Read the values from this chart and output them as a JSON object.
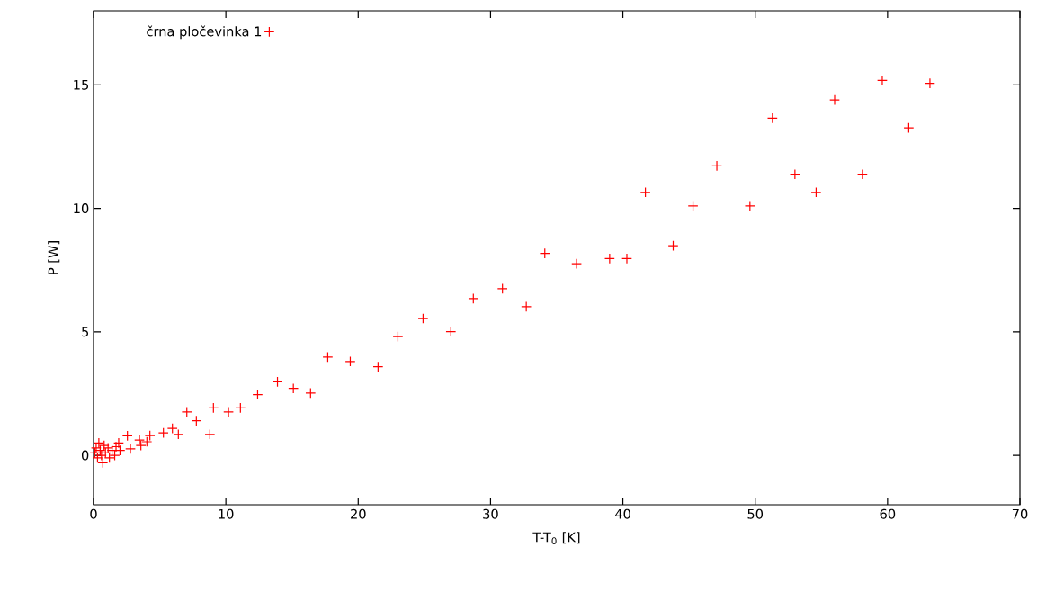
{
  "chart_data": {
    "type": "scatter",
    "xlabel": "T-T$_{0}$ [K]",
    "ylabel": "P [W]",
    "xlim": [
      0,
      70
    ],
    "ylim": [
      -2,
      18
    ],
    "xticks": [
      0,
      10,
      20,
      30,
      40,
      50,
      60,
      70
    ],
    "yticks": [
      0,
      5,
      10,
      15
    ],
    "grid": false,
    "legend": "top left",
    "marker": "cross",
    "series": [
      {
        "name": "črna pločevinka 1",
        "color": "#ff0000",
        "x": [
          0.1,
          0.2,
          0.3,
          0.4,
          0.5,
          0.6,
          0.7,
          0.8,
          0.9,
          1.1,
          1.2,
          1.4,
          1.6,
          1.7,
          1.9,
          2.0,
          2.56,
          2.79,
          3.47,
          3.58,
          4.03,
          4.26,
          5.28,
          5.96,
          6.41,
          7.05,
          7.77,
          8.79,
          9.06,
          10.2,
          11.1,
          12.4,
          13.9,
          15.1,
          16.4,
          17.7,
          19.4,
          21.5,
          23.0,
          24.9,
          27.0,
          28.7,
          30.9,
          32.7,
          34.1,
          36.5,
          39.0,
          40.3,
          41.7,
          43.8,
          45.3,
          47.1,
          49.6,
          51.3,
          53.0,
          54.6,
          56.0,
          58.1,
          59.6,
          61.6,
          63.2
        ],
        "values": [
          0.1,
          0.3,
          -0.1,
          0.5,
          0.2,
          0.0,
          -0.3,
          0.4,
          0.1,
          0.3,
          -0.1,
          0.2,
          0.0,
          0.35,
          0.5,
          0.2,
          0.79,
          0.26,
          0.62,
          0.4,
          0.55,
          0.8,
          0.91,
          1.09,
          0.85,
          1.76,
          1.4,
          0.85,
          1.92,
          1.76,
          1.92,
          2.46,
          2.98,
          2.71,
          2.52,
          3.98,
          3.8,
          3.59,
          4.81,
          5.54,
          5.01,
          6.35,
          6.75,
          6.02,
          8.18,
          7.76,
          7.97,
          7.97,
          10.65,
          8.49,
          10.1,
          11.72,
          10.1,
          13.65,
          11.38,
          10.65,
          14.39,
          11.38,
          15.18,
          13.26,
          15.06
        ]
      }
    ]
  }
}
